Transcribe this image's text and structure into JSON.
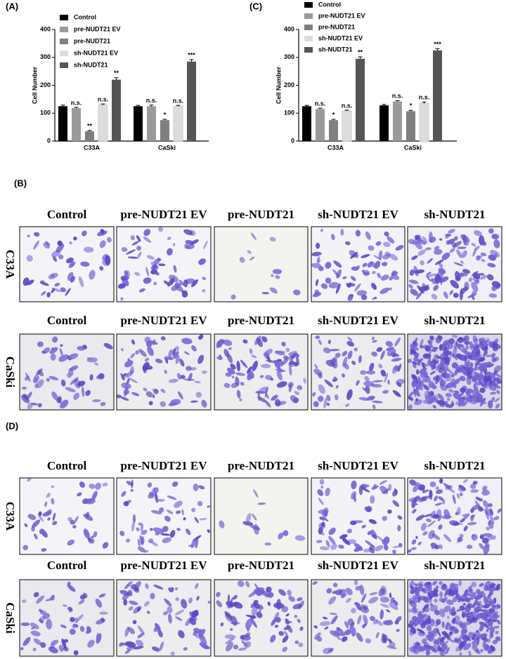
{
  "chart_data": [
    {
      "type": "bar",
      "panel_label": "(A)",
      "y_label": "Cell Number",
      "categories": [
        "C33A",
        "CaSki"
      ],
      "ylim": [
        0,
        400
      ],
      "yticks": [
        0,
        100,
        200,
        300,
        400
      ],
      "legend": "top-left",
      "series": [
        {
          "name": "Control",
          "color": "#000000",
          "values": [
            125,
            125
          ],
          "errors": [
            4,
            3
          ],
          "annotations": [
            null,
            null
          ]
        },
        {
          "name": "pre-NUDT21 EV",
          "color": "#9a9a9a",
          "values": [
            118,
            125
          ],
          "errors": [
            3,
            4
          ],
          "annotations": [
            "n.s.",
            "n.s."
          ]
        },
        {
          "name": "pre-NUDT21",
          "color": "#7f7f7f",
          "values": [
            35,
            75
          ],
          "errors": [
            3,
            3
          ],
          "annotations": [
            "**",
            "*"
          ]
        },
        {
          "name": "sh-NUDT21 EV",
          "color": "#dcdcdc",
          "values": [
            130,
            125
          ],
          "errors": [
            3,
            3
          ],
          "annotations": [
            "n.s.",
            "n.s."
          ]
        },
        {
          "name": "sh-NUDT21",
          "color": "#555555",
          "values": [
            220,
            285
          ],
          "errors": [
            7,
            7
          ],
          "annotations": [
            "**",
            "***"
          ]
        }
      ]
    },
    {
      "type": "bar",
      "panel_label": "(C)",
      "y_label": "Cell Number",
      "categories": [
        "C33A",
        "CaSki"
      ],
      "ylim": [
        0,
        400
      ],
      "yticks": [
        0,
        100,
        200,
        300,
        400
      ],
      "legend": "top-left",
      "series": [
        {
          "name": "Control",
          "color": "#000000",
          "values": [
            125,
            128
          ],
          "errors": [
            3,
            3
          ],
          "annotations": [
            null,
            null
          ]
        },
        {
          "name": "pre-NUDT21 EV",
          "color": "#9a9a9a",
          "values": [
            115,
            142
          ],
          "errors": [
            3,
            3
          ],
          "annotations": [
            "n.s.",
            "n.s."
          ]
        },
        {
          "name": "pre-NUDT21",
          "color": "#7f7f7f",
          "values": [
            75,
            107
          ],
          "errors": [
            3,
            3
          ],
          "annotations": [
            "*",
            "*"
          ]
        },
        {
          "name": "sh-NUDT21 EV",
          "color": "#dcdcdc",
          "values": [
            108,
            135
          ],
          "errors": [
            3,
            5
          ],
          "annotations": [
            "n.s.",
            "n.s."
          ]
        },
        {
          "name": "sh-NUDT21",
          "color": "#555555",
          "values": [
            295,
            325
          ],
          "errors": [
            7,
            6
          ],
          "annotations": [
            "**",
            "***"
          ]
        }
      ]
    }
  ],
  "image_panels": [
    {
      "label": "(B)",
      "rows": [
        {
          "name": "C33A",
          "columns": [
            "Control",
            "pre-NUDT21 EV",
            "pre-NUDT21",
            "sh-NUDT21 EV",
            "sh-NUDT21"
          ]
        },
        {
          "name": "CaSki",
          "columns": [
            "Control",
            "pre-NUDT21 EV",
            "pre-NUDT21",
            "sh-NUDT21 EV",
            "sh-NUDT21"
          ]
        }
      ]
    },
    {
      "label": "(D)",
      "rows": [
        {
          "name": "C33A",
          "columns": [
            "Control",
            "pre-NUDT21 EV",
            "pre-NUDT21",
            "sh-NUDT21 EV",
            "sh-NUDT21"
          ]
        },
        {
          "name": "CaSki",
          "columns": [
            "Control",
            "pre-NUDT21 EV",
            "pre-NUDT21",
            "sh-NUDT21 EV",
            "sh-NUDT21"
          ]
        }
      ]
    }
  ]
}
